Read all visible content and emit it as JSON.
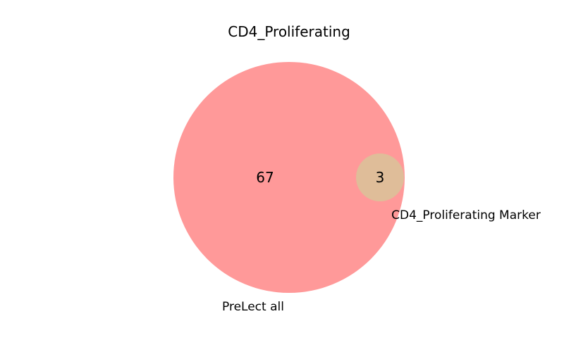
{
  "title": "CD4_Proliferating",
  "sets": [
    {
      "name": "PreLect all",
      "color": "#ff9999"
    },
    {
      "name": "CD4_Proliferating Marker",
      "color": "#dfbd99"
    }
  ],
  "regions": {
    "only_a": "67",
    "intersection": "3"
  }
}
